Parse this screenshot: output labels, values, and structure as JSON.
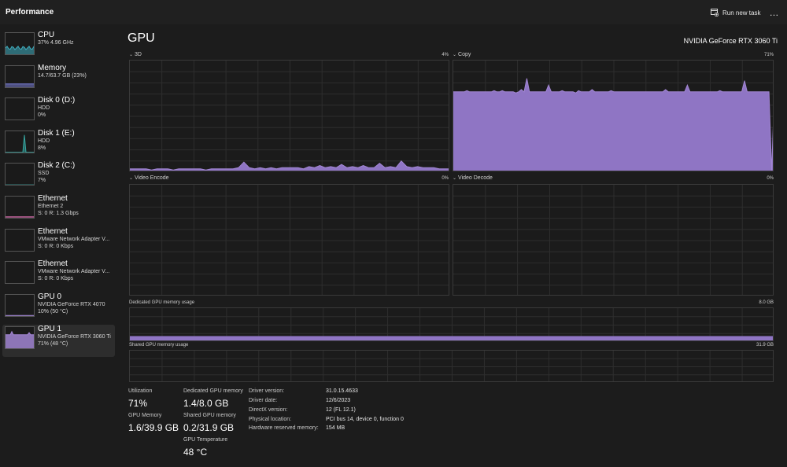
{
  "app": {
    "title": "Performance"
  },
  "toolbar": {
    "run_new_task": "Run new task",
    "more": "…",
    "run_icon": "run-task-icon"
  },
  "colors": {
    "cpu": "#3fb0c2",
    "memory": "#7a7ed6",
    "disk": "#36a6a0",
    "ethernet": "#d06aa8",
    "gpu": "#a286d3",
    "gpu_fill": "#8f75c4"
  },
  "sidebar": [
    {
      "name": "CPU",
      "sub1": "37%  4.96 GHz",
      "sub2": ""
    },
    {
      "name": "Memory",
      "sub1": "14.7/63.7 GB (23%)",
      "sub2": ""
    },
    {
      "name": "Disk 0 (D:)",
      "sub1": "HDD",
      "sub2": "0%"
    },
    {
      "name": "Disk 1 (E:)",
      "sub1": "HDD",
      "sub2": "8%"
    },
    {
      "name": "Disk 2 (C:)",
      "sub1": "SSD",
      "sub2": "7%"
    },
    {
      "name": "Ethernet",
      "sub1": "Ethernet 2",
      "sub2": "S: 0  R: 1.3 Gbps"
    },
    {
      "name": "Ethernet",
      "sub1": "VMware Network Adapter V...",
      "sub2": "S: 0  R: 0 Kbps"
    },
    {
      "name": "Ethernet",
      "sub1": "VMware Network Adapter V...",
      "sub2": "S: 0  R: 0 Kbps"
    },
    {
      "name": "GPU 0",
      "sub1": "NVIDIA GeForce RTX 4070",
      "sub2": "10%  (50 °C)"
    },
    {
      "name": "GPU 1",
      "sub1": "NVIDIA GeForce RTX 3060 Ti",
      "sub2": "71%  (48 °C)"
    }
  ],
  "main": {
    "title": "GPU",
    "model": "NVIDIA GeForce RTX 3060 Ti",
    "engines": [
      {
        "label": "3D",
        "percent": "4%",
        "history": [
          3,
          3,
          3,
          3,
          2,
          3,
          3,
          3,
          2,
          3,
          3,
          3,
          3,
          3,
          2,
          3,
          3,
          3,
          3,
          3,
          4,
          9,
          4,
          3,
          4,
          3,
          4,
          3,
          4,
          4,
          4,
          4,
          3,
          5,
          4,
          6,
          4,
          5,
          4,
          7,
          4,
          5,
          4,
          6,
          4,
          4,
          8,
          4,
          5,
          4,
          10,
          5,
          4,
          5,
          4,
          4,
          4,
          3,
          3,
          3
        ]
      },
      {
        "label": "Copy",
        "percent": "71%",
        "history": [
          72,
          72,
          72,
          72,
          72,
          73,
          72,
          72,
          72,
          72,
          72,
          72,
          72,
          72,
          72,
          73,
          72,
          72,
          73,
          72,
          72,
          72,
          72,
          71,
          72,
          74,
          72,
          84,
          72,
          72,
          72,
          72,
          72,
          72,
          72,
          78,
          72,
          72,
          72,
          72,
          73,
          72,
          72,
          72,
          72,
          71,
          73,
          72,
          72,
          72,
          72,
          74,
          72,
          72,
          72,
          72,
          72,
          72,
          73,
          72,
          72,
          72,
          72,
          72,
          72,
          72,
          72,
          72,
          72,
          72,
          72,
          72,
          72,
          72,
          72,
          72,
          72,
          72,
          74,
          72,
          72,
          72,
          72,
          72,
          72,
          72,
          78,
          72,
          72,
          72,
          72,
          72,
          72,
          72,
          72,
          72,
          72,
          72,
          73,
          72,
          72,
          72,
          72,
          72,
          72,
          72,
          72,
          82,
          72,
          72,
          72,
          72,
          72,
          72,
          72,
          72,
          72,
          1,
          72
        ]
      },
      {
        "label": "Video Encode",
        "percent": "0%"
      },
      {
        "label": "Video Decode",
        "percent": "0%"
      }
    ],
    "dedicated_memory": {
      "label": "Dedicated GPU memory usage",
      "max": "8.0 GB",
      "fraction": 0.175
    },
    "shared_memory": {
      "label": "Shared GPU memory usage",
      "max": "31.9 GB",
      "fraction": 0.006
    }
  },
  "stats": {
    "utilization": {
      "label": "Utilization",
      "value": "71%"
    },
    "dedicated": {
      "label": "Dedicated GPU memory",
      "value": "1.4/8.0 GB"
    },
    "gpu_memory": {
      "label": "GPU Memory",
      "value": "1.6/39.9 GB"
    },
    "shared": {
      "label": "Shared GPU memory",
      "value": "0.2/31.9 GB"
    },
    "temperature": {
      "label": "GPU Temperature",
      "value": "48 °C"
    }
  },
  "info": [
    {
      "key": "Driver version:",
      "value": "31.0.15.4633"
    },
    {
      "key": "Driver date:",
      "value": "12/6/2023"
    },
    {
      "key": "DirectX version:",
      "value": "12 (FL 12.1)"
    },
    {
      "key": "Physical location:",
      "value": "PCI bus 14, device 0, function 0"
    },
    {
      "key": "Hardware reserved memory:",
      "value": "154 MB"
    }
  ]
}
